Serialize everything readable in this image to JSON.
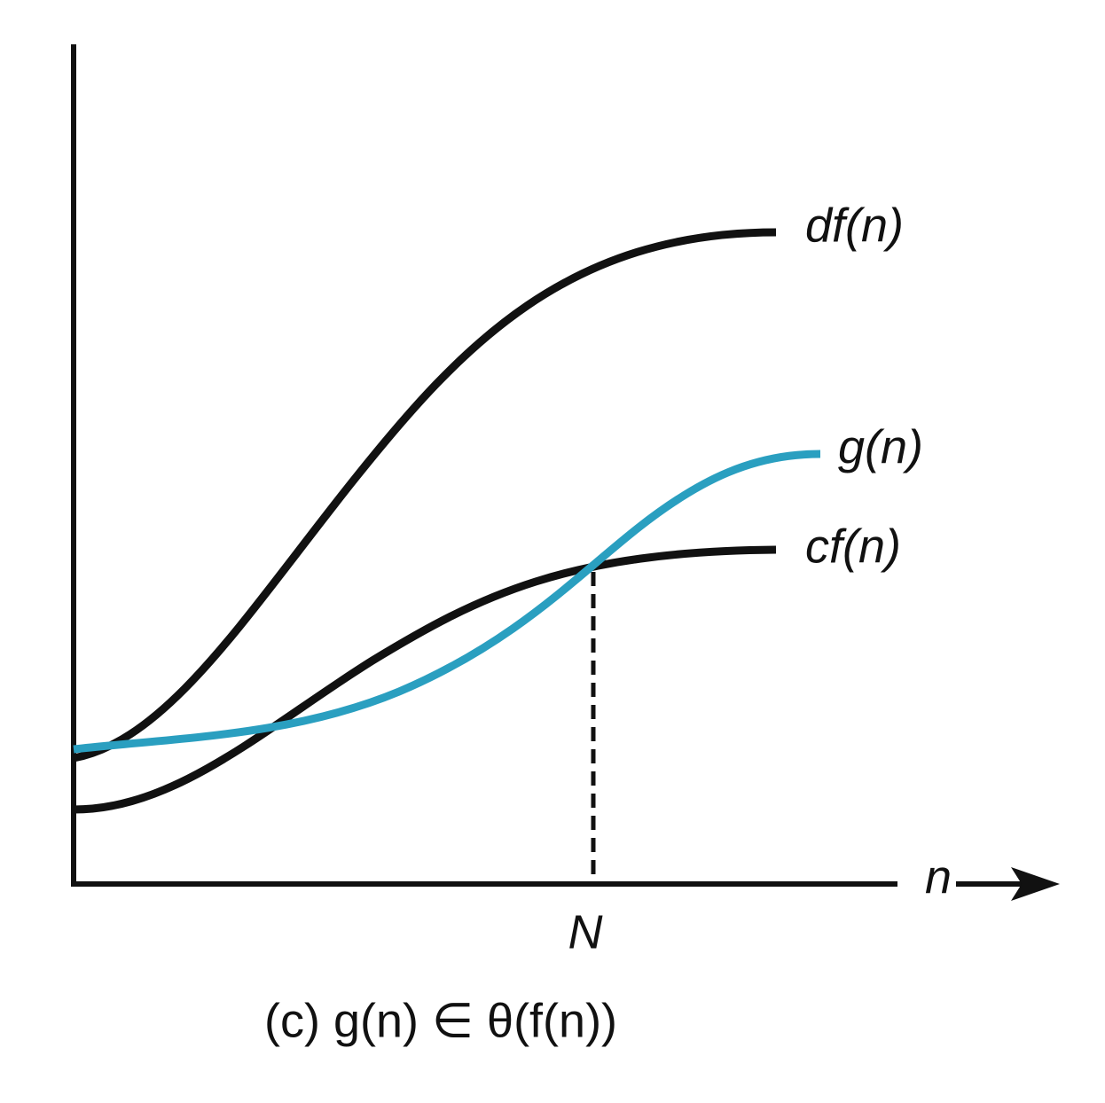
{
  "labels": {
    "upper": "df(n)",
    "function": "g(n)",
    "lower": "cf(n)"
  },
  "axes": {
    "x": "n",
    "threshold": "N"
  },
  "caption": "(c) g(n) ∈ θ(f(n))"
}
